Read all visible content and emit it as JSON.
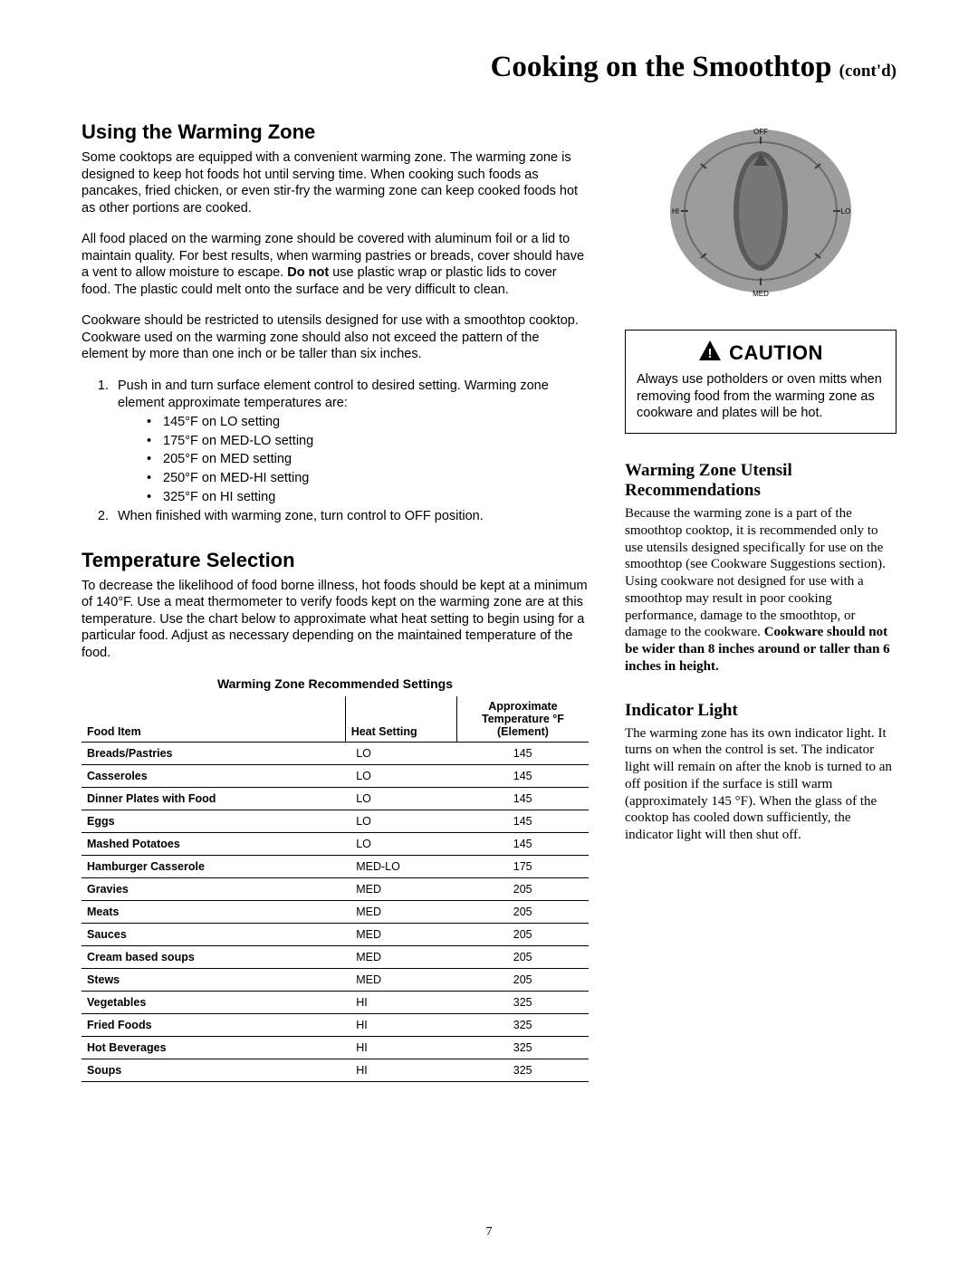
{
  "page": {
    "title_main": "Cooking on the Smoothtop",
    "title_contd": "(cont'd)",
    "number": "7"
  },
  "left": {
    "h1": "Using the Warming Zone",
    "p1": "Some cooktops are equipped with a convenient warming zone. The warming zone is designed to keep hot foods hot until serving time.  When cooking such foods as pancakes, fried chicken, or even stir-fry the warming zone can keep cooked foods hot as other portions are cooked.",
    "p2a": "All food placed on the warming zone should be covered with aluminum foil or a lid to maintain quality. For best results, when warming pastries or breads, cover should have a vent to allow moisture to escape. ",
    "p2b_bold": "Do not",
    "p2c": " use plastic wrap or plastic lids to cover food. The plastic could melt onto the surface and be very difficult to clean.",
    "p3": "Cookware should be restricted to utensils designed for use with a smoothtop cooktop. Cookware used on the warming zone should also not exceed the pattern of the element by more than one inch or be taller than six inches.",
    "li1_intro": "Push in and turn surface element control to desired setting. Warming zone element approximate temperatures are:",
    "temps": [
      "145°F on LO setting",
      "175°F on MED-LO setting",
      "205°F on MED setting",
      "250°F on MED-HI setting",
      "325°F on HI setting"
    ],
    "li2": "When finished with warming zone, turn control to OFF position.",
    "h2": "Temperature Selection",
    "p4": "To decrease the likelihood of food borne illness, hot foods should be kept at a minimum of 140°F. Use a meat thermometer to verify foods kept on the warming zone are at this temperature. Use the chart below to approximate what heat setting to begin using for a particular food. Adjust as necessary depending on the maintained temperature of the food.",
    "table_title": "Warming Zone Recommended Settings",
    "table": {
      "col_food": "Food Item",
      "col_heat": "Heat Setting",
      "col_temp_l1": "Approximate",
      "col_temp_l2": "Temperature °F",
      "col_temp_l3": "(Element)",
      "rows": [
        {
          "food": "Breads/Pastries",
          "heat": "LO",
          "temp": "145"
        },
        {
          "food": "Casseroles",
          "heat": "LO",
          "temp": "145"
        },
        {
          "food": "Dinner Plates with Food",
          "heat": "LO",
          "temp": "145"
        },
        {
          "food": "Eggs",
          "heat": "LO",
          "temp": "145"
        },
        {
          "food": "Mashed Potatoes",
          "heat": "LO",
          "temp": "145"
        },
        {
          "food": "Hamburger Casserole",
          "heat": "MED-LO",
          "temp": "175"
        },
        {
          "food": "Gravies",
          "heat": "MED",
          "temp": "205"
        },
        {
          "food": "Meats",
          "heat": "MED",
          "temp": "205"
        },
        {
          "food": "Sauces",
          "heat": "MED",
          "temp": "205"
        },
        {
          "food": "Cream based soups",
          "heat": "MED",
          "temp": "205"
        },
        {
          "food": "Stews",
          "heat": "MED",
          "temp": "205"
        },
        {
          "food": "Vegetables",
          "heat": "HI",
          "temp": "325"
        },
        {
          "food": "Fried Foods",
          "heat": "HI",
          "temp": "325"
        },
        {
          "food": "Hot Beverages",
          "heat": "HI",
          "temp": "325"
        },
        {
          "food": "Soups",
          "heat": "HI",
          "temp": "325"
        }
      ]
    }
  },
  "right": {
    "knob": {
      "body_color": "#9c9c9c",
      "ring_color": "#6b6b6b",
      "pointer_color": "#5a5a5a",
      "label_off": "OFF",
      "label_lo": "LO",
      "label_hi": "HI",
      "label_med": "MED"
    },
    "caution_word": "CAUTION",
    "caution_body": "Always use potholders or oven mitts when removing food from the warming zone as cookware and plates will be hot.",
    "h_utensil_l1": "Warming Zone Utensil",
    "h_utensil_l2": "Recommendations",
    "utensil_a": "Because the warming zone is a part of the smoothtop cooktop, it is recommended only to use utensils designed specifically for use on the smoothtop (see Cookware Suggestions section). Using cookware not designed for use with a smoothtop may result in poor cooking performance, damage to the smoothtop, or damage to the cookware. ",
    "utensil_b_bold": "Cookware should not be wider than 8 inches around or taller than 6 inches in height.",
    "h_indicator": "Indicator Light",
    "indicator_body": "The warming zone has its own indicator light. It turns on when the control is set. The indicator light will remain on after the knob is turned to an off position if the surface is still warm (approximately 145 °F). When the glass of the cooktop has cooled down sufficiently, the indicator light will then shut off."
  }
}
